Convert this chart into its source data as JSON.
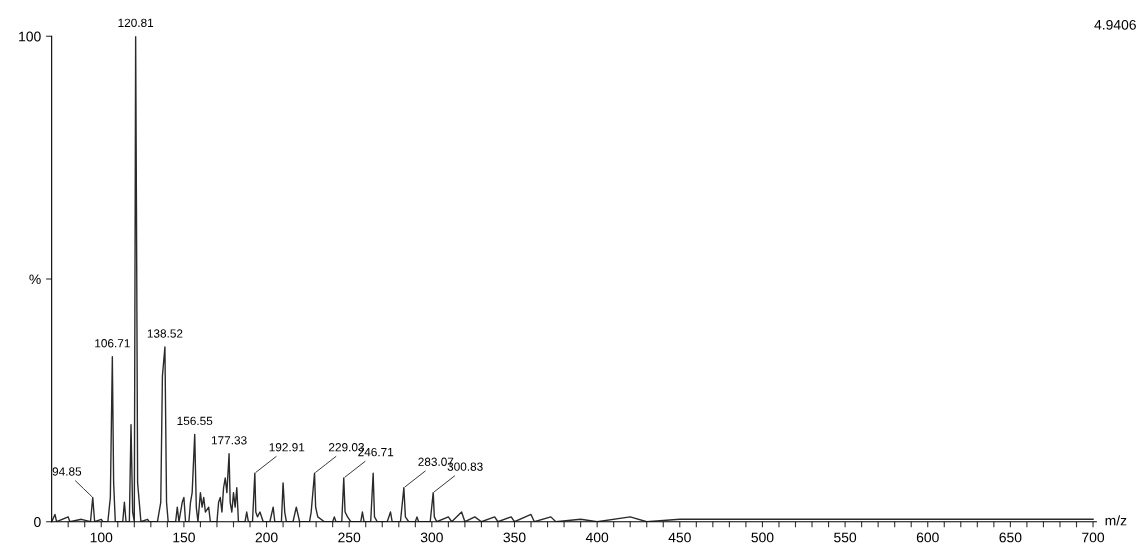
{
  "chart_data": {
    "type": "line",
    "xlabel": "m/z",
    "xlim": [
      70,
      702
    ],
    "ylim": [
      0,
      100
    ],
    "xticks": [
      {
        "value": 80,
        "label": null
      },
      {
        "value": 90,
        "label": null
      },
      100,
      {
        "value": 110,
        "label": null
      },
      {
        "value": 120,
        "label": null
      },
      {
        "value": 130,
        "label": null
      },
      {
        "value": 140,
        "label": null
      },
      150,
      {
        "value": 160,
        "label": null
      },
      {
        "value": 170,
        "label": null
      },
      {
        "value": 180,
        "label": null
      },
      {
        "value": 190,
        "label": null
      },
      200,
      {
        "value": 210,
        "label": null
      },
      {
        "value": 220,
        "label": null
      },
      {
        "value": 230,
        "label": null
      },
      {
        "value": 240,
        "label": null
      },
      250,
      {
        "value": 260,
        "label": null
      },
      {
        "value": 270,
        "label": null
      },
      {
        "value": 280,
        "label": null
      },
      {
        "value": 290,
        "label": null
      },
      300,
      {
        "value": 310,
        "label": null
      },
      {
        "value": 320,
        "label": null
      },
      {
        "value": 330,
        "label": null
      },
      {
        "value": 340,
        "label": null
      },
      350,
      {
        "value": 360,
        "label": null
      },
      {
        "value": 370,
        "label": null
      },
      {
        "value": 380,
        "label": null
      },
      {
        "value": 390,
        "label": null
      },
      400,
      {
        "value": 410,
        "label": null
      },
      {
        "value": 420,
        "label": null
      },
      {
        "value": 430,
        "label": null
      },
      {
        "value": 440,
        "label": null
      },
      450,
      {
        "value": 460,
        "label": null
      },
      {
        "value": 470,
        "label": null
      },
      {
        "value": 480,
        "label": null
      },
      {
        "value": 490,
        "label": null
      },
      500,
      {
        "value": 510,
        "label": null
      },
      {
        "value": 520,
        "label": null
      },
      {
        "value": 530,
        "label": null
      },
      {
        "value": 540,
        "label": null
      },
      550,
      {
        "value": 560,
        "label": null
      },
      {
        "value": 570,
        "label": null
      },
      {
        "value": 580,
        "label": null
      },
      {
        "value": 590,
        "label": null
      },
      600,
      {
        "value": 610,
        "label": null
      },
      {
        "value": 620,
        "label": null
      },
      {
        "value": 630,
        "label": null
      },
      {
        "value": 640,
        "label": null
      },
      650,
      {
        "value": 660,
        "label": null
      },
      {
        "value": 670,
        "label": null
      },
      {
        "value": 680,
        "label": null
      },
      {
        "value": 690,
        "label": null
      },
      700
    ],
    "yticks": [
      0,
      {
        "value": 50,
        "label": "%"
      },
      100
    ],
    "series": [
      {
        "color": "#2a2a2a",
        "x": [
          70,
          72,
          73,
          80,
          81,
          88,
          93.5,
          94.85,
          96,
          100,
          101,
          104,
          105.5,
          106.71,
          107.5,
          108.5,
          113,
          114,
          115,
          117,
          118,
          119,
          120,
          120.81,
          121.3,
          122,
          123,
          124,
          128,
          129,
          134,
          136,
          137,
          138.52,
          139.5,
          140.5,
          145,
          146,
          147,
          149,
          150,
          151,
          153,
          154,
          155,
          156.55,
          157.5,
          158.5,
          160,
          161,
          162,
          163,
          165,
          166,
          170,
          171,
          172,
          173,
          174,
          175,
          176,
          177.33,
          178,
          179,
          180,
          181,
          182,
          183,
          187,
          188,
          189,
          191.5,
          192.91,
          193.5,
          194.5,
          196,
          198,
          202,
          204,
          205,
          209,
          210,
          211,
          212,
          216,
          218,
          220,
          226,
          227,
          229.03,
          229.7,
          231,
          235,
          240,
          241,
          242,
          245.5,
          246.71,
          247.5,
          249,
          251,
          257,
          258,
          259,
          263,
          264.5,
          265.3,
          267,
          273,
          275,
          276,
          281,
          283.07,
          284,
          286,
          290,
          291,
          292,
          299,
          300.83,
          301.5,
          303,
          310,
          312,
          318,
          320,
          326,
          330,
          338,
          340,
          348,
          350,
          360,
          362,
          372,
          375,
          390,
          400,
          420,
          430,
          450,
          500,
          550,
          600,
          650,
          700
        ],
        "values": [
          0,
          1.5,
          0,
          1,
          0,
          0.5,
          0,
          5,
          0,
          0.5,
          0,
          0,
          5,
          34,
          8,
          0,
          0,
          4,
          0,
          0,
          20,
          2,
          0,
          100,
          65,
          8,
          4,
          0,
          0.5,
          0,
          0,
          4,
          30,
          36,
          4,
          0,
          0,
          3,
          0,
          4,
          5,
          0,
          0,
          4,
          6,
          18,
          3,
          0,
          6,
          3,
          5,
          2,
          3,
          0,
          0,
          4,
          5,
          2,
          7,
          9,
          6,
          14,
          4,
          2,
          6,
          3,
          7,
          0,
          0,
          2,
          0,
          0,
          10,
          2,
          1,
          2,
          0,
          0,
          3,
          0,
          0,
          8,
          2,
          0,
          0,
          3,
          0,
          0,
          2,
          10,
          3,
          1,
          0,
          0,
          1,
          0,
          0,
          9,
          2,
          1,
          0,
          0,
          2,
          0,
          0,
          10,
          1,
          0,
          0,
          2,
          0,
          0,
          7,
          1,
          0,
          0,
          1,
          0,
          0,
          6,
          1,
          0,
          1,
          0,
          2,
          0,
          1,
          0,
          1,
          0,
          1,
          0,
          1.5,
          0,
          1,
          0,
          0.5,
          0,
          1,
          0,
          0.5,
          0.5,
          0.5,
          0.5,
          0.5,
          0.5
        ]
      }
    ],
    "annotations": [
      {
        "text": "94.85",
        "x": 94.85,
        "y": 5
      },
      {
        "text": "106.71",
        "x": 106.71,
        "y": 34
      },
      {
        "text": "120.81",
        "x": 120.81,
        "y": 100
      },
      {
        "text": "138.52",
        "x": 138.52,
        "y": 36
      },
      {
        "text": "156.55",
        "x": 156.55,
        "y": 18
      },
      {
        "text": "177.33",
        "x": 177.33,
        "y": 14
      },
      {
        "text": "192.91",
        "x": 192.91,
        "y": 10
      },
      {
        "text": "229.03",
        "x": 229.03,
        "y": 10
      },
      {
        "text": "246.71",
        "x": 246.71,
        "y": 9
      },
      {
        "text": "283.07",
        "x": 283.07,
        "y": 7
      },
      {
        "text": "300.83",
        "x": 300.83,
        "y": 6
      },
      "4.9406"
    ]
  }
}
